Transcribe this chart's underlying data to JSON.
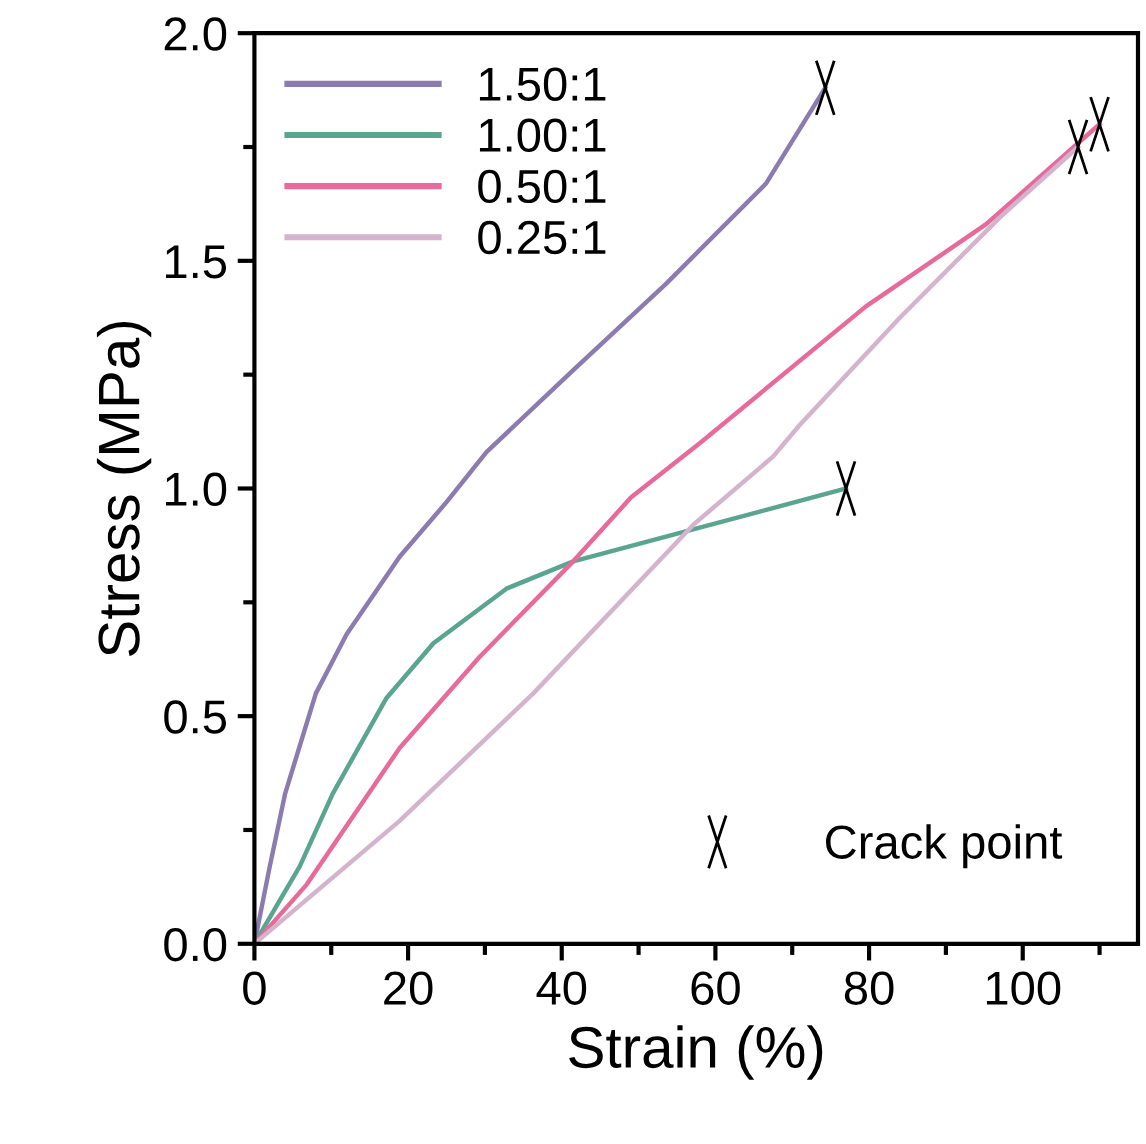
{
  "chart_data": {
    "type": "line",
    "xlabel": "Strain (%)",
    "ylabel": "Stress (MPa)",
    "xlim": [
      0,
      115
    ],
    "ylim": [
      0,
      2.0
    ],
    "xticks": [
      0,
      {
        "value": 10,
        "label": null
      },
      20,
      {
        "value": 30,
        "label": null
      },
      40,
      {
        "value": 50,
        "label": null
      },
      60,
      {
        "value": 70,
        "label": null
      },
      80,
      {
        "value": 90,
        "label": null
      },
      100,
      {
        "value": 110,
        "label": null
      }
    ],
    "yticks": [
      {
        "value": 0,
        "label": "0.0"
      },
      {
        "value": 0.25,
        "label": null
      },
      {
        "value": 0.5,
        "label": "0.5"
      },
      {
        "value": 0.75,
        "label": null
      },
      {
        "value": 1.0,
        "label": "1.0"
      },
      {
        "value": 1.25,
        "label": null
      },
      {
        "value": 1.5,
        "label": "1.5"
      },
      {
        "value": 1.75,
        "label": null
      },
      {
        "value": 2.0,
        "label": "2.0"
      }
    ],
    "grid": false,
    "legend": "top left",
    "marker": "none",
    "line_style": "solid",
    "series": [
      {
        "name": "1.50:1",
        "color": "#8b7bb0",
        "x": [
          0,
          2,
          4,
          8,
          12,
          18.9,
          25,
          30.2,
          41.5,
          53.6,
          66.6,
          74.3
        ],
        "values": [
          0,
          0.17,
          0.33,
          0.55,
          0.68,
          0.85,
          0.97,
          1.08,
          1.26,
          1.45,
          1.67,
          1.88
        ]
      },
      {
        "name": "1.00:1",
        "color": "#5aa58f",
        "x": [
          0,
          5.9,
          10.2,
          17.2,
          23.3,
          32.8,
          41.5,
          57.1,
          77
        ],
        "values": [
          0,
          0.17,
          0.33,
          0.54,
          0.66,
          0.78,
          0.84,
          0.91,
          1.0
        ]
      },
      {
        "name": "0.50:1",
        "color": "#e86a9b",
        "x": [
          0,
          6.8,
          18.9,
          29.3,
          41.5,
          49,
          58,
          79.6,
          95.2,
          110
        ],
        "values": [
          0,
          0.13,
          0.43,
          0.63,
          0.84,
          0.98,
          1.1,
          1.4,
          1.58,
          1.8
        ]
      },
      {
        "name": "0.25:1",
        "color": "#d4b3cd",
        "x": [
          0,
          18.9,
          36.3,
          57.1,
          67.5,
          71,
          84,
          97,
          107.2
        ],
        "values": [
          0,
          0.27,
          0.55,
          0.92,
          1.07,
          1.14,
          1.375,
          1.595,
          1.75
        ]
      },
      {
        "name": "Crack point",
        "type": "scatter",
        "marker": "cross",
        "color": "#000000",
        "x": [
          74.3,
          77,
          110,
          107.2
        ],
        "values": [
          1.88,
          1.0,
          1.8,
          1.75
        ]
      }
    ]
  }
}
